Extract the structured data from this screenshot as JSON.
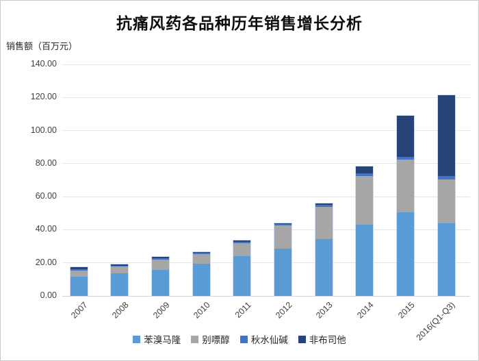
{
  "title": "抗痛风药各品种历年销售增长分析",
  "chart_data": {
    "type": "bar",
    "stacked": true,
    "title": "抗痛风药各品种历年销售增长分析",
    "ylabel": "销售额（百万元）",
    "xlabel": "",
    "categories": [
      "2007",
      "2008",
      "2009",
      "2010",
      "2011",
      "2012",
      "2013",
      "2014",
      "2015",
      "2016(Q1-Q3)"
    ],
    "series": [
      {
        "name": "苯溴马隆",
        "color": "#5B9BD5",
        "values": [
          11.5,
          13.5,
          15.6,
          19.3,
          23.9,
          28.6,
          34.4,
          43.2,
          50.5,
          43.9
        ]
      },
      {
        "name": "别嘌醇",
        "color": "#A6A6A6",
        "values": [
          3.8,
          4.4,
          6.2,
          6.0,
          8.0,
          13.9,
          19.4,
          29.4,
          31.9,
          26.7
        ]
      },
      {
        "name": "秋水仙碱",
        "color": "#4472C4",
        "values": [
          0.8,
          0.5,
          1.2,
          1.0,
          1.0,
          1.0,
          1.5,
          1.5,
          1.8,
          1.7
        ]
      },
      {
        "name": "非布司他",
        "color": "#264478",
        "values": [
          1.5,
          0.5,
          0.5,
          0.4,
          0.7,
          0.6,
          0.8,
          4.0,
          24.9,
          49.0
        ]
      }
    ],
    "totals": [
      17.6,
      18.9,
      23.5,
      26.7,
      33.6,
      44.1,
      56.1,
      78.1,
      109.1,
      121.3
    ],
    "ylim": [
      0,
      140
    ],
    "ytick_step": 20,
    "ytick_labels": [
      "0.00",
      "20.00",
      "40.00",
      "60.00",
      "80.00",
      "100.00",
      "120.00",
      "140.00"
    ],
    "grid": true,
    "legend_position": "bottom",
    "gridline_color": "#e4e4e4",
    "axis_text_color": "#3f3f3f"
  }
}
